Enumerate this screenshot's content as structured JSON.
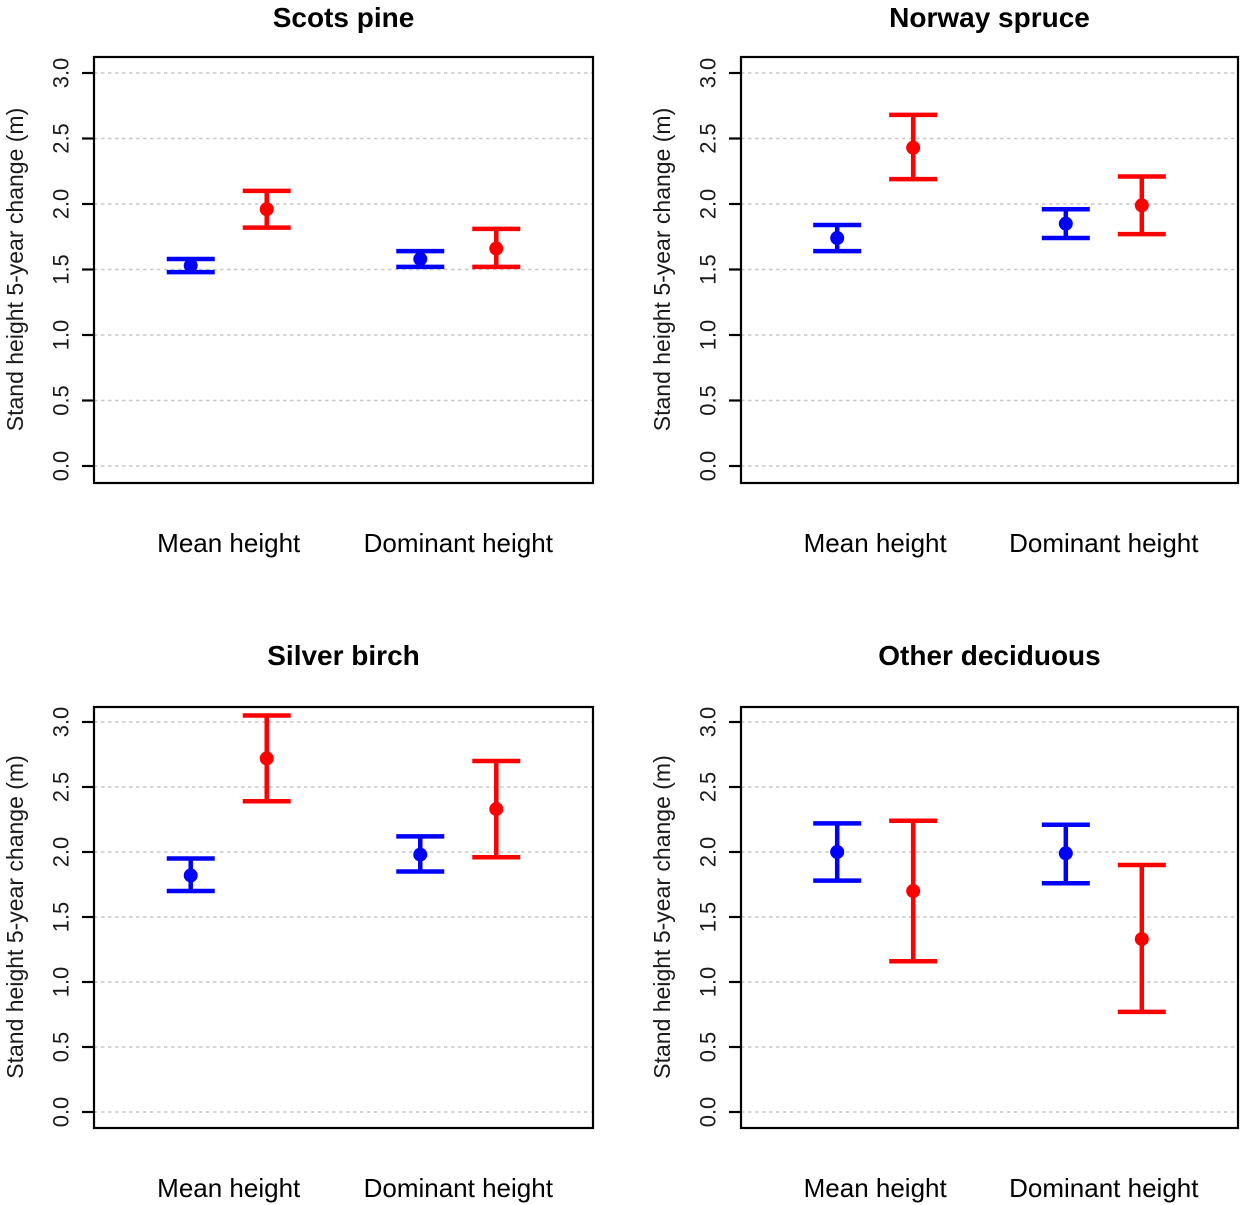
{
  "figure": {
    "ylabel": "Stand height 5-year change (m)",
    "categories": [
      "Mean height",
      "Dominant height"
    ],
    "y_tick_labels": [
      "0.0",
      "0.5",
      "1.0",
      "1.5",
      "2.0",
      "2.5",
      "3.0"
    ],
    "colors": {
      "series_blue": "#0000ff",
      "series_red": "#ff0000",
      "grid": "#c8c8c8",
      "axis": "#000000"
    }
  },
  "chart_data": [
    {
      "type": "scatter",
      "title": "Scots pine",
      "xlabel": "",
      "ylabel": "Stand height 5-year change (m)",
      "categories": [
        "Mean height",
        "Dominant height"
      ],
      "ylim": [
        0,
        3.0
      ],
      "y_ticks": [
        0,
        0.5,
        1.0,
        1.5,
        2.0,
        2.5,
        3.0
      ],
      "grid": "dashed-horizontal",
      "legend": "none",
      "series": [
        {
          "name": "blue",
          "color": "#0000ff",
          "points": [
            {
              "category": "Mean height",
              "y": 1.53,
              "ci_low": 1.48,
              "ci_high": 1.58
            },
            {
              "category": "Dominant height",
              "y": 1.58,
              "ci_low": 1.52,
              "ci_high": 1.64
            }
          ]
        },
        {
          "name": "red",
          "color": "#ff0000",
          "points": [
            {
              "category": "Mean height",
              "y": 1.96,
              "ci_low": 1.82,
              "ci_high": 2.1
            },
            {
              "category": "Dominant height",
              "y": 1.66,
              "ci_low": 1.52,
              "ci_high": 1.81
            }
          ]
        }
      ]
    },
    {
      "type": "scatter",
      "title": "Norway spruce",
      "xlabel": "",
      "ylabel": "Stand height 5-year change (m)",
      "categories": [
        "Mean height",
        "Dominant height"
      ],
      "ylim": [
        0,
        3.0
      ],
      "y_ticks": [
        0,
        0.5,
        1.0,
        1.5,
        2.0,
        2.5,
        3.0
      ],
      "grid": "dashed-horizontal",
      "legend": "none",
      "series": [
        {
          "name": "blue",
          "color": "#0000ff",
          "points": [
            {
              "category": "Mean height",
              "y": 1.74,
              "ci_low": 1.64,
              "ci_high": 1.84
            },
            {
              "category": "Dominant height",
              "y": 1.85,
              "ci_low": 1.74,
              "ci_high": 1.96
            }
          ]
        },
        {
          "name": "red",
          "color": "#ff0000",
          "points": [
            {
              "category": "Mean height",
              "y": 2.43,
              "ci_low": 2.19,
              "ci_high": 2.68
            },
            {
              "category": "Dominant height",
              "y": 1.99,
              "ci_low": 1.77,
              "ci_high": 2.21
            }
          ]
        }
      ]
    },
    {
      "type": "scatter",
      "title": "Silver birch",
      "xlabel": "",
      "ylabel": "Stand height 5-year change (m)",
      "categories": [
        "Mean height",
        "Dominant height"
      ],
      "ylim": [
        0,
        3.0
      ],
      "y_ticks": [
        0,
        0.5,
        1.0,
        1.5,
        2.0,
        2.5,
        3.0
      ],
      "grid": "dashed-horizontal",
      "legend": "none",
      "series": [
        {
          "name": "blue",
          "color": "#0000ff",
          "points": [
            {
              "category": "Mean height",
              "y": 1.82,
              "ci_low": 1.7,
              "ci_high": 1.95
            },
            {
              "category": "Dominant height",
              "y": 1.98,
              "ci_low": 1.85,
              "ci_high": 2.12
            }
          ]
        },
        {
          "name": "red",
          "color": "#ff0000",
          "points": [
            {
              "category": "Mean height",
              "y": 2.72,
              "ci_low": 2.39,
              "ci_high": 3.05
            },
            {
              "category": "Dominant height",
              "y": 2.33,
              "ci_low": 1.96,
              "ci_high": 2.7
            }
          ]
        }
      ]
    },
    {
      "type": "scatter",
      "title": "Other deciduous",
      "xlabel": "",
      "ylabel": "Stand height 5-year change (m)",
      "categories": [
        "Mean height",
        "Dominant height"
      ],
      "ylim": [
        0,
        3.0
      ],
      "y_ticks": [
        0,
        0.5,
        1.0,
        1.5,
        2.0,
        2.5,
        3.0
      ],
      "grid": "dashed-horizontal",
      "legend": "none",
      "series": [
        {
          "name": "blue",
          "color": "#0000ff",
          "points": [
            {
              "category": "Mean height",
              "y": 2.0,
              "ci_low": 1.78,
              "ci_high": 2.22
            },
            {
              "category": "Dominant height",
              "y": 1.99,
              "ci_low": 1.76,
              "ci_high": 2.21
            }
          ]
        },
        {
          "name": "red",
          "color": "#ff0000",
          "points": [
            {
              "category": "Mean height",
              "y": 1.7,
              "ci_low": 1.16,
              "ci_high": 2.24
            },
            {
              "category": "Dominant height",
              "y": 1.33,
              "ci_low": 0.77,
              "ci_high": 1.9
            }
          ]
        }
      ]
    }
  ]
}
